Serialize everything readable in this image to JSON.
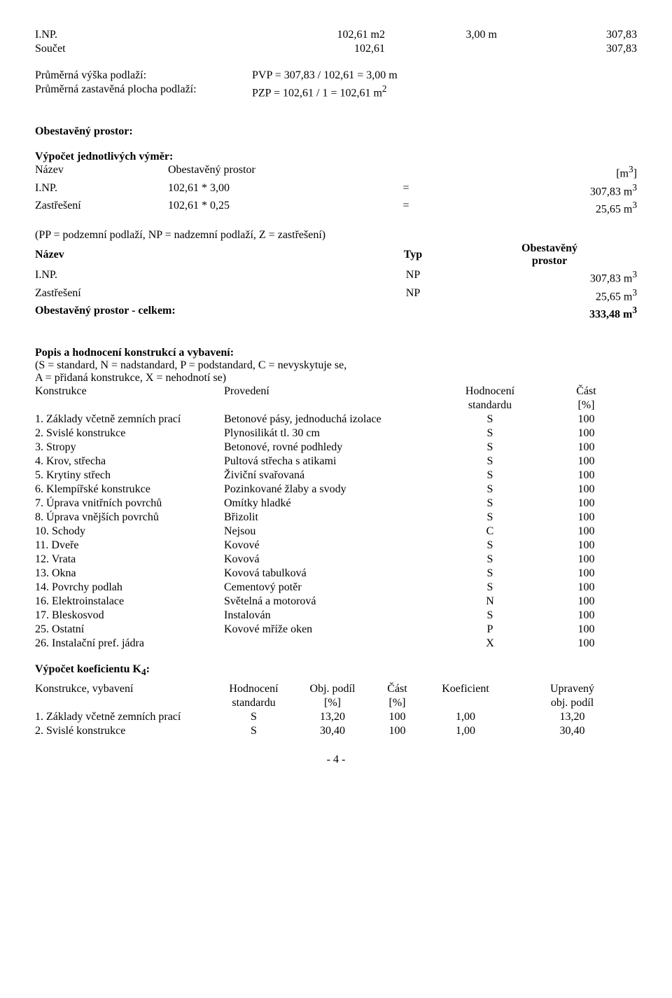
{
  "top": {
    "rows": [
      [
        "I.NP.",
        "102,61 m2",
        "3,00 m",
        "307,83"
      ],
      [
        "Součet",
        "102,61",
        "",
        "307,83"
      ]
    ]
  },
  "avg": {
    "row1_label": "Průměrná výška podlaží:",
    "row1_val": "PVP = 307,83 / 102,61 = 3,00 m",
    "row2_label": "Průměrná zastavěná plocha podlaží:",
    "row2_val": "PZP = 102,61 / 1 = 102,61 m",
    "sup2": "2"
  },
  "obest_hdr": "Obestavěný prostor:",
  "vypocet_hdr": "Výpočet jednotlivých výměr:",
  "vym_header": {
    "c1": "Název",
    "c2": "Obestavěný prostor",
    "c3": "[m",
    "sup": "3",
    "c3b": "]"
  },
  "vym_rows": [
    [
      "I.NP.",
      "102,61 * 3,00",
      "=",
      "307,83 m"
    ],
    [
      "Zastřešení",
      "102,61 * 0,25",
      "=",
      "25,65 m"
    ]
  ],
  "pp_line": "(PP = podzemní podlaží, NP = nadzemní podlaží, Z = zastřešení)",
  "typ_header": {
    "c1": "Název",
    "c2": "Typ",
    "c3a": "Obestavěný",
    "c3b": "prostor"
  },
  "typ_rows": [
    [
      "I.NP.",
      "NP",
      "307,83 m"
    ],
    [
      "Zastřešení",
      "NP",
      "25,65 m"
    ]
  ],
  "total_row": [
    "Obestavěný prostor - celkem:",
    "333,48 m"
  ],
  "popis_hdr": "Popis a hodnocení konstrukcí a vybavení:",
  "popis_lines": [
    "(S = standard, N = nadstandard, P = podstandard, C = nevyskytuje se,",
    "A = přidaná konstrukce, X = nehodnotí se)"
  ],
  "kon_header": [
    "Konstrukce",
    "Provedení",
    "Hodnocení",
    "Část"
  ],
  "kon_header2": [
    "",
    "",
    "standardu",
    "[%]"
  ],
  "kon_rows": [
    [
      "1. Základy včetně zemních prací",
      "Betonové pásy, jednoduchá izolace",
      "S",
      "100"
    ],
    [
      "2. Svislé konstrukce",
      "Plynosilikát tl. 30 cm",
      "S",
      "100"
    ],
    [
      "3. Stropy",
      "Betonové, rovné podhledy",
      "S",
      "100"
    ],
    [
      "4. Krov, střecha",
      "Pultová střecha s atikami",
      "S",
      "100"
    ],
    [
      "5. Krytiny střech",
      "Živiční svařovaná",
      "S",
      "100"
    ],
    [
      "6. Klempířské konstrukce",
      "Pozinkované žlaby a svody",
      "S",
      "100"
    ],
    [
      "7. Úprava vnitřních povrchů",
      "Omítky hladké",
      "S",
      "100"
    ],
    [
      "8. Úprava vnějších povrchů",
      "Břizolit",
      "S",
      "100"
    ],
    [
      "10. Schody",
      "Nejsou",
      "C",
      "100"
    ],
    [
      "11. Dveře",
      "Kovové",
      "S",
      "100"
    ],
    [
      "12. Vrata",
      "Kovová",
      "S",
      "100"
    ],
    [
      "13. Okna",
      "Kovová tabulková",
      "S",
      "100"
    ],
    [
      "14. Povrchy podlah",
      "Cementový potěr",
      "S",
      "100"
    ],
    [
      "16. Elektroinstalace",
      "Světelná a motorová",
      "N",
      "100"
    ],
    [
      "17. Bleskosvod",
      "Instalován",
      "S",
      "100"
    ],
    [
      "25. Ostatní",
      "Kovové mříže oken",
      "P",
      "100"
    ],
    [
      "26. Instalační pref. jádra",
      "",
      "X",
      "100"
    ]
  ],
  "k4_hdr": "Výpočet koeficientu K",
  "k4_sub": "4",
  "k4_colon": ":",
  "k4_header": [
    "Konstrukce, vybavení",
    "Hodnocení",
    "Obj. podíl",
    "Část",
    "Koeficient",
    "Upravený"
  ],
  "k4_header2": [
    "",
    "standardu",
    "[%]",
    "[%]",
    "",
    "obj. podíl"
  ],
  "k4_rows": [
    [
      "1. Základy včetně zemních prací",
      "S",
      "13,20",
      "100",
      "1,00",
      "13,20"
    ],
    [
      "2. Svislé konstrukce",
      "S",
      "30,40",
      "100",
      "1,00",
      "30,40"
    ]
  ],
  "pagenum": "- 4 -"
}
